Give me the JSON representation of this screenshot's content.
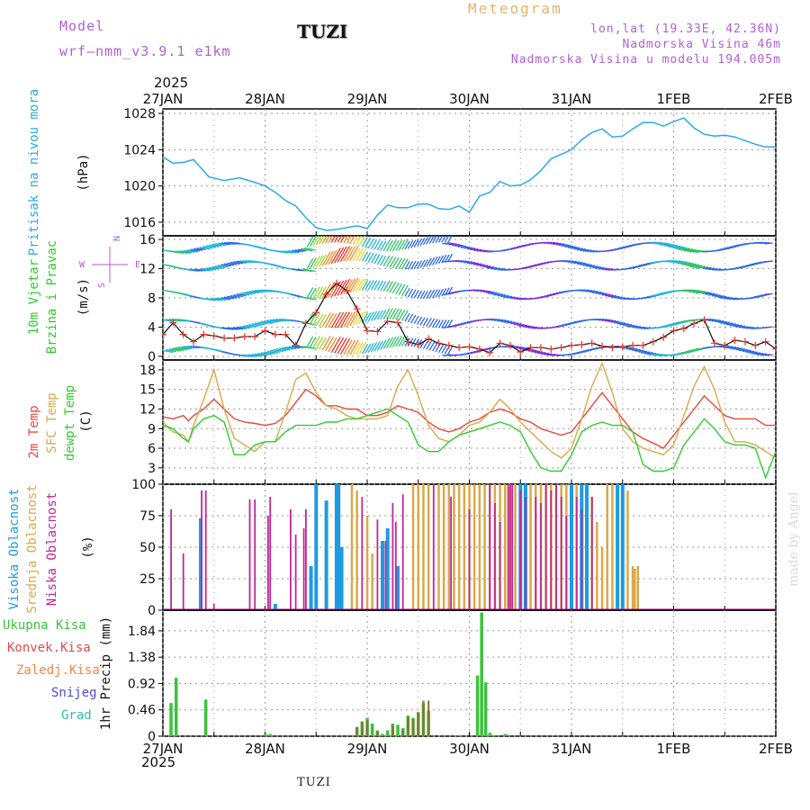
{
  "header": {
    "model_label": "Model",
    "model_name": "wrf—nmm_v3.9.1 e1km",
    "station": "TUZI",
    "product": "Meteogram",
    "lonlat": "lon,lat (19.33E, 42.36N)",
    "elevation": "Nadmorska Visina 46m",
    "elevation_model": "Nadmorska Visina u modelu 194.005m"
  },
  "x_axis": {
    "year": "2025",
    "tick_labels": [
      "27JAN",
      "28JAN",
      "29JAN",
      "30JAN",
      "31JAN",
      "1FEB",
      "2FEB"
    ],
    "range_days": [
      0,
      6
    ]
  },
  "footer": {
    "station": "TUZI",
    "credit": "made by Angel"
  },
  "colors": {
    "pressure": "#29aaea",
    "temp2m": "#e8473a",
    "sfc": "#d9a94a",
    "dew": "#33cc33",
    "high": "#1e9be0",
    "mid": "#d9a94a",
    "low": "#c0279a",
    "precip_total": "#3cc23c",
    "precip_conv": "#e84a4a",
    "precip_frozen": "#ee8844",
    "snow": "#4a4ad6",
    "grad": "#33bbaa"
  },
  "chart_data": [
    {
      "type": "line",
      "panel": "pressure",
      "ylabel": [
        "Pritisak na nivou mora",
        "(hPa)"
      ],
      "ylim": [
        1014.5,
        1028.5
      ],
      "yticks": [
        1016,
        1020,
        1024,
        1028
      ],
      "series": [
        {
          "x": [
            0,
            0.1,
            0.2,
            0.3,
            0.45,
            0.6,
            0.75,
            0.9,
            1.0,
            1.1,
            1.2,
            1.3,
            1.4,
            1.5,
            1.6,
            1.7,
            1.8,
            1.9,
            2.0,
            2.1,
            2.2,
            2.3,
            2.4,
            2.5,
            2.6,
            2.7,
            2.8,
            2.9,
            3.0,
            3.1,
            3.2,
            3.3,
            3.4,
            3.5,
            3.6,
            3.7,
            3.8,
            3.9,
            4.0,
            4.1,
            4.2,
            4.3,
            4.4,
            4.5,
            4.6,
            4.7,
            4.8,
            4.9,
            5.0,
            5.1,
            5.2,
            5.3,
            5.4,
            5.5,
            5.6,
            5.7,
            5.8,
            5.9,
            6.0
          ],
          "values": [
            1023.2,
            1022.5,
            1022.6,
            1022.9,
            1021.0,
            1020.6,
            1020.9,
            1020.4,
            1020.0,
            1019.3,
            1018.4,
            1017.8,
            1016.5,
            1015.4,
            1015.1,
            1015.2,
            1015.4,
            1015.6,
            1015.3,
            1016.8,
            1017.9,
            1017.6,
            1017.6,
            1018.0,
            1018.0,
            1017.5,
            1017.4,
            1017.8,
            1017.1,
            1018.9,
            1019.3,
            1020.5,
            1020.0,
            1020.1,
            1020.7,
            1021.7,
            1023.0,
            1023.5,
            1024.0,
            1025.1,
            1025.9,
            1026.3,
            1025.4,
            1025.5,
            1026.3,
            1027.0,
            1027.0,
            1026.6,
            1027.1,
            1027.5,
            1026.4,
            1025.7,
            1025.5,
            1025.6,
            1025.4,
            1025.0,
            1024.6,
            1024.3,
            1024.3
          ]
        }
      ]
    },
    {
      "type": "line",
      "panel": "wind",
      "ylabel": [
        "10m Vjetar",
        "Brzina i Pravac",
        "(m/s)"
      ],
      "legend_compass": [
        "N",
        "S",
        "W",
        "E"
      ],
      "ylim": [
        -0.5,
        16.5
      ],
      "yticks": [
        0,
        4,
        8,
        12,
        16
      ],
      "series": [
        {
          "name": "wind speed",
          "x": [
            0,
            0.1,
            0.2,
            0.3,
            0.4,
            0.5,
            0.6,
            0.7,
            0.8,
            0.9,
            1.0,
            1.1,
            1.2,
            1.3,
            1.4,
            1.5,
            1.6,
            1.7,
            1.8,
            1.9,
            2.0,
            2.1,
            2.2,
            2.3,
            2.4,
            2.5,
            2.6,
            2.7,
            2.8,
            2.9,
            3.0,
            3.1,
            3.2,
            3.3,
            3.4,
            3.5,
            3.6,
            3.7,
            3.8,
            3.9,
            4.0,
            4.1,
            4.2,
            4.3,
            4.4,
            4.5,
            4.6,
            4.7,
            4.8,
            4.9,
            5.0,
            5.1,
            5.2,
            5.3,
            5.4,
            5.5,
            5.6,
            5.7,
            5.8,
            5.9,
            6.0
          ],
          "values": [
            3.0,
            4.6,
            3.0,
            2.0,
            3.0,
            2.8,
            2.5,
            2.5,
            2.7,
            2.7,
            3.5,
            3.0,
            3.0,
            1.5,
            4.5,
            6.0,
            8.5,
            10.0,
            9.0,
            6.5,
            3.5,
            3.4,
            4.8,
            4.6,
            2.0,
            1.6,
            2.4,
            1.8,
            1.5,
            1.2,
            1.3,
            1.0,
            0.5,
            1.8,
            1.5,
            0.6,
            1.2,
            1.2,
            1.0,
            1.2,
            1.5,
            1.6,
            1.8,
            1.4,
            1.2,
            1.3,
            1.5,
            1.5,
            2.0,
            2.6,
            3.5,
            3.8,
            4.5,
            5.0,
            1.8,
            1.5,
            2.2,
            2.0,
            1.5,
            2.0,
            1.0
          ]
        }
      ]
    },
    {
      "type": "line",
      "panel": "temperature",
      "ylabel": [
        "2m Temp",
        "SFC Temp",
        "dewpt Temp",
        "(C)"
      ],
      "ylim": [
        0.5,
        19.5
      ],
      "yticks": [
        0,
        3,
        6,
        9,
        12,
        15,
        18
      ],
      "x": [
        0,
        0.1,
        0.2,
        0.25,
        0.3,
        0.4,
        0.5,
        0.6,
        0.7,
        0.8,
        0.9,
        1.0,
        1.1,
        1.2,
        1.3,
        1.4,
        1.5,
        1.6,
        1.7,
        1.8,
        1.9,
        2.0,
        2.1,
        2.2,
        2.3,
        2.4,
        2.5,
        2.6,
        2.7,
        2.8,
        2.9,
        3.0,
        3.1,
        3.2,
        3.3,
        3.4,
        3.5,
        3.6,
        3.7,
        3.8,
        3.9,
        4.0,
        4.1,
        4.2,
        4.3,
        4.4,
        4.5,
        4.6,
        4.7,
        4.8,
        4.9,
        5.0,
        5.1,
        5.2,
        5.3,
        5.4,
        5.5,
        5.6,
        5.7,
        5.8,
        5.9,
        6.0
      ],
      "series": [
        {
          "name": "2m Temp",
          "values": [
            10.8,
            10.5,
            11.0,
            10.2,
            11.0,
            12.0,
            13.5,
            12.0,
            10.5,
            10.0,
            9.8,
            9.5,
            9.8,
            11.0,
            13.0,
            15.0,
            14.0,
            12.5,
            12.5,
            12.0,
            12.0,
            11.0,
            11.0,
            11.5,
            12.5,
            12.0,
            11.5,
            10.0,
            9.0,
            8.5,
            9.0,
            10.0,
            10.5,
            11.5,
            12.0,
            11.5,
            10.5,
            10.0,
            9.0,
            8.5,
            8.0,
            8.5,
            10.5,
            12.5,
            14.5,
            12.5,
            10.5,
            8.5,
            7.5,
            6.8,
            6.0,
            8.0,
            10.0,
            12.0,
            14.0,
            12.5,
            11.0,
            10.5,
            10.5,
            10.5,
            9.5,
            9.5
          ]
        },
        {
          "name": "SFC Temp",
          "values": [
            10.0,
            8.5,
            8.0,
            7.0,
            9.5,
            13.5,
            18.0,
            12.0,
            7.5,
            6.5,
            5.5,
            7.0,
            7.0,
            11.5,
            16.5,
            17.5,
            14.5,
            12.5,
            12.0,
            11.0,
            10.5,
            10.5,
            10.5,
            11.0,
            15.5,
            18.0,
            14.0,
            9.5,
            7.5,
            7.0,
            8.0,
            9.5,
            10.0,
            11.5,
            13.5,
            12.0,
            10.0,
            8.5,
            7.0,
            5.5,
            4.5,
            6.0,
            10.5,
            15.5,
            19.0,
            14.5,
            9.0,
            7.0,
            6.0,
            5.5,
            5.0,
            6.5,
            11.0,
            15.5,
            18.5,
            15.0,
            10.0,
            7.0,
            7.0,
            6.5,
            5.5,
            4.5
          ]
        },
        {
          "name": "dewpt Temp",
          "values": [
            9.5,
            9.0,
            7.5,
            7.0,
            9.0,
            10.5,
            11.0,
            10.0,
            5.0,
            5.0,
            6.5,
            7.0,
            7.0,
            8.5,
            9.5,
            9.5,
            9.5,
            10.0,
            10.0,
            10.5,
            10.5,
            11.0,
            11.5,
            12.0,
            11.0,
            10.0,
            6.5,
            5.5,
            5.5,
            7.0,
            8.0,
            8.5,
            9.0,
            9.5,
            10.0,
            9.5,
            8.5,
            5.5,
            3.0,
            2.5,
            2.5,
            5.0,
            8.5,
            9.5,
            10.0,
            9.5,
            9.5,
            8.5,
            3.5,
            2.5,
            2.5,
            3.0,
            6.5,
            8.5,
            10.5,
            9.0,
            7.0,
            6.5,
            6.5,
            6.0,
            1.5,
            5.5
          ]
        }
      ]
    },
    {
      "type": "bar",
      "panel": "clouds",
      "ylabel": [
        "Visoka Oblacnost",
        "Srednja Oblacnost",
        "Niska Oblacnost",
        "(%)"
      ],
      "ylim": [
        0,
        100
      ],
      "yticks": [
        0,
        25,
        50,
        75,
        100
      ],
      "series": [
        {
          "name": "Visoka Oblacnost",
          "x": [
            0.37,
            1.1,
            1.45,
            1.5,
            1.6,
            1.7,
            1.72,
            1.75,
            2.15,
            2.2,
            2.3,
            3.5,
            3.55,
            4.0,
            4.1,
            4.15,
            4.45,
            4.5
          ],
          "values": [
            73,
            5,
            35,
            100,
            87,
            100,
            100,
            50,
            55,
            65,
            35,
            100,
            100,
            100,
            100,
            100,
            100,
            100
          ]
        },
        {
          "name": "Srednja Oblacnost",
          "x": [
            1.85,
            1.9,
            2.0,
            2.05,
            2.45,
            2.5,
            2.55,
            2.6,
            2.7,
            2.75,
            2.8,
            2.85,
            2.9,
            2.95,
            3.0,
            3.05,
            3.1,
            3.15,
            3.2,
            3.25,
            3.3,
            3.35,
            3.4,
            3.45,
            3.6,
            3.65,
            3.7,
            3.75,
            3.8,
            3.85,
            3.9,
            3.95,
            4.05,
            4.2,
            4.25,
            4.3,
            4.35,
            4.4,
            4.55,
            4.6,
            4.62,
            4.65
          ],
          "values": [
            100,
            95,
            75,
            45,
            100,
            100,
            100,
            100,
            100,
            100,
            100,
            100,
            100,
            100,
            100,
            100,
            100,
            100,
            100,
            100,
            100,
            100,
            100,
            100,
            100,
            100,
            100,
            100,
            100,
            100,
            100,
            100,
            100,
            90,
            70,
            50,
            100,
            100,
            95,
            35,
            33,
            35
          ]
        },
        {
          "name": "Niska Oblacnost",
          "x": [
            0.08,
            0.2,
            0.38,
            0.42,
            0.5,
            0.85,
            0.9,
            1.03,
            1.05,
            1.25,
            1.3,
            1.38,
            1.4,
            1.95,
            2.1,
            2.18,
            2.25,
            2.28,
            2.35,
            2.65,
            2.82,
            3.0,
            3.2,
            3.25,
            3.3,
            3.38,
            3.4,
            3.42,
            3.5,
            3.55,
            3.65,
            3.7,
            3.75,
            3.8,
            3.85,
            3.9,
            3.95,
            4.05,
            4.1,
            4.2
          ],
          "values": [
            80,
            45,
            95,
            95,
            5,
            88,
            88,
            75,
            90,
            80,
            60,
            65,
            80,
            90,
            72,
            55,
            85,
            70,
            92,
            100,
            90,
            80,
            100,
            85,
            70,
            100,
            100,
            100,
            95,
            90,
            90,
            85,
            100,
            95,
            100,
            90,
            75,
            90,
            80,
            90
          ]
        }
      ]
    },
    {
      "type": "bar",
      "panel": "precip",
      "ylabel": [
        "1hr Precip (mm)"
      ],
      "legend": [
        "Ukupna Kisa",
        "Konvek.Kisa",
        "Zaledj.Kisa",
        "Snijeg",
        "Grad"
      ],
      "ylim": [
        0,
        2.2
      ],
      "yticks": [
        0,
        0.46,
        0.92,
        1.38,
        1.84
      ],
      "series": [
        {
          "name": "Ukupna Kisa",
          "x": [
            0.08,
            0.13,
            0.42,
            1.0,
            1.05,
            1.9,
            1.95,
            2.0,
            2.05,
            2.1,
            2.15,
            2.2,
            2.25,
            2.3,
            2.35,
            2.4,
            2.45,
            2.5,
            2.55,
            2.6,
            2.9,
            3.08,
            3.12,
            3.16,
            3.2,
            3.25,
            3.35
          ],
          "values": [
            0.58,
            1.02,
            0.64,
            0.04,
            0.04,
            0.16,
            0.26,
            0.32,
            0.22,
            0.1,
            0.04,
            0.1,
            0.22,
            0.2,
            0.14,
            0.36,
            0.32,
            0.42,
            0.58,
            0.44,
            0.02,
            1.06,
            2.16,
            0.94,
            0.06,
            0.02,
            0.04
          ]
        },
        {
          "name": "Konvek.Kisa",
          "x": [
            1.9,
            1.95,
            2.0,
            2.1,
            2.25,
            2.35,
            2.4,
            2.45,
            2.5,
            2.55,
            2.6
          ],
          "values": [
            0.16,
            0.24,
            0.28,
            0.08,
            0.18,
            0.1,
            0.34,
            0.3,
            0.42,
            0.62,
            0.62
          ]
        }
      ]
    }
  ]
}
